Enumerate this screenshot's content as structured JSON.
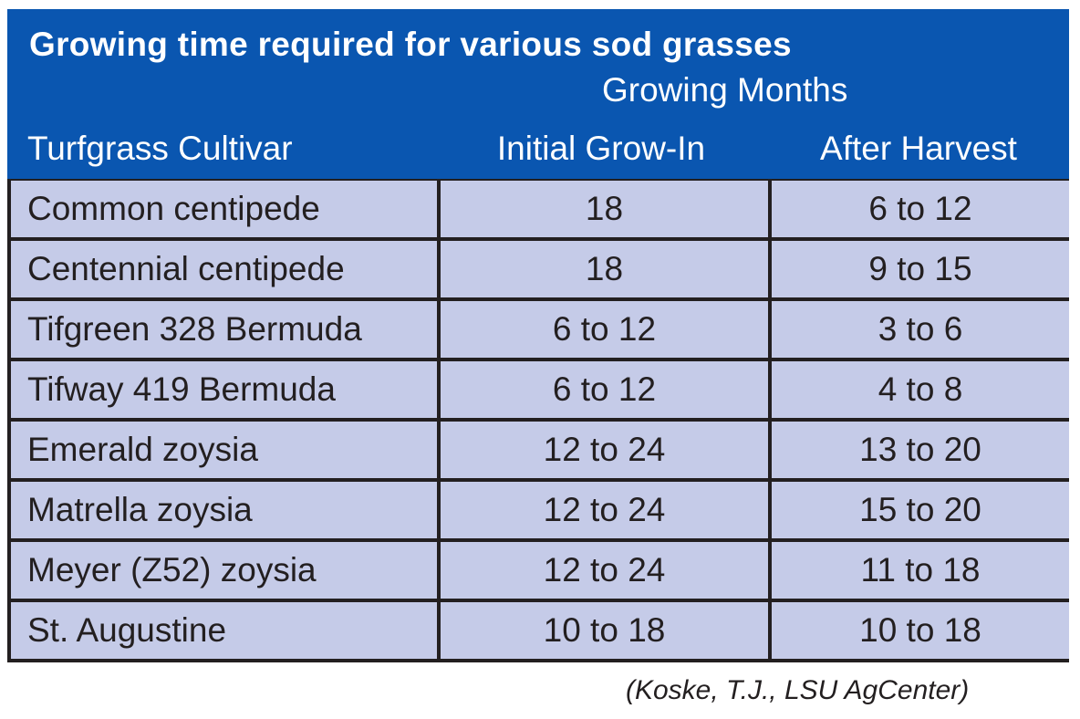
{
  "table": {
    "title": "Growing time required for various sod grasses",
    "group_header": "Growing Months",
    "columns": [
      "Turfgrass Cultivar",
      "Initial Grow-In",
      "After Harvest"
    ],
    "rows": [
      {
        "cultivar": "Common centipede",
        "initial": "18",
        "after": "6 to 12"
      },
      {
        "cultivar": "Centennial centipede",
        "initial": "18",
        "after": "9 to 15"
      },
      {
        "cultivar": "Tifgreen 328 Bermuda",
        "initial": "6 to 12",
        "after": "3 to 6"
      },
      {
        "cultivar": "Tifway 419 Bermuda",
        "initial": "6 to 12",
        "after": "4 to 8"
      },
      {
        "cultivar": "Emerald zoysia",
        "initial": "12 to 24",
        "after": "13 to 20"
      },
      {
        "cultivar": "Matrella zoysia",
        "initial": "12 to 24",
        "after": "15 to 20"
      },
      {
        "cultivar": "Meyer (Z52) zoysia",
        "initial": "12 to 24",
        "after": "11 to 18"
      },
      {
        "cultivar": "St. Augustine",
        "initial": "10 to 18",
        "after": "10 to 18"
      }
    ]
  },
  "source": "(Koske, T.J., LSU AgCenter)",
  "colors": {
    "header_bg": "#0a56b0",
    "cell_bg": "#c5cbe8",
    "grid_lines": "#231f20"
  }
}
